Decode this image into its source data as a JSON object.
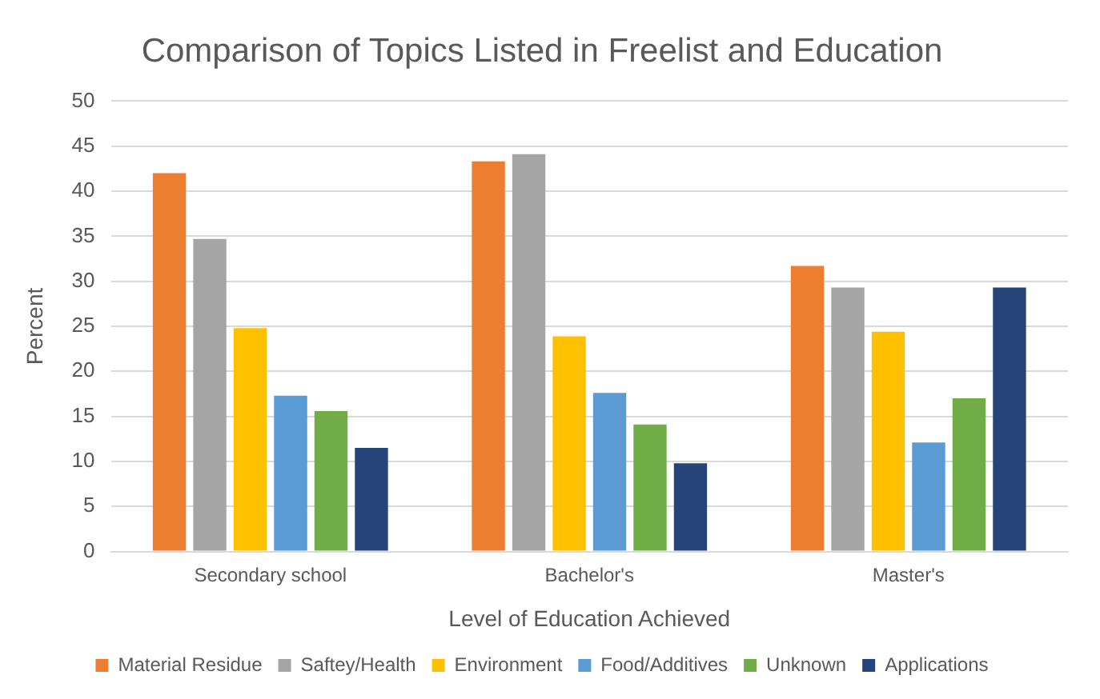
{
  "chart_data": {
    "type": "bar",
    "title": "Comparison of Topics Listed in Freelist and Education",
    "xlabel": "Level of Education Achieved",
    "ylabel": "Percent",
    "categories": [
      "Secondary school",
      "Bachelor's",
      "Master's"
    ],
    "series": [
      {
        "name": "Material Residue",
        "color": "#ed7d31",
        "values": [
          42.0,
          43.3,
          31.7
        ]
      },
      {
        "name": "Saftey/Health",
        "color": "#a5a5a5",
        "values": [
          34.7,
          44.1,
          29.3
        ]
      },
      {
        "name": "Environment",
        "color": "#ffc000",
        "values": [
          24.8,
          23.9,
          24.4
        ]
      },
      {
        "name": "Food/Additives",
        "color": "#5b9bd5",
        "values": [
          17.3,
          17.6,
          12.1
        ]
      },
      {
        "name": "Unknown",
        "color": "#70ad47",
        "values": [
          15.6,
          14.1,
          17.0
        ]
      },
      {
        "name": "Applications",
        "color": "#264478",
        "values": [
          11.5,
          9.8,
          29.3
        ]
      }
    ],
    "ylim": [
      0,
      50
    ],
    "yticks": [
      0,
      5,
      10,
      15,
      20,
      25,
      30,
      35,
      40,
      45,
      50
    ],
    "grid": "y",
    "legend": "bottom"
  }
}
